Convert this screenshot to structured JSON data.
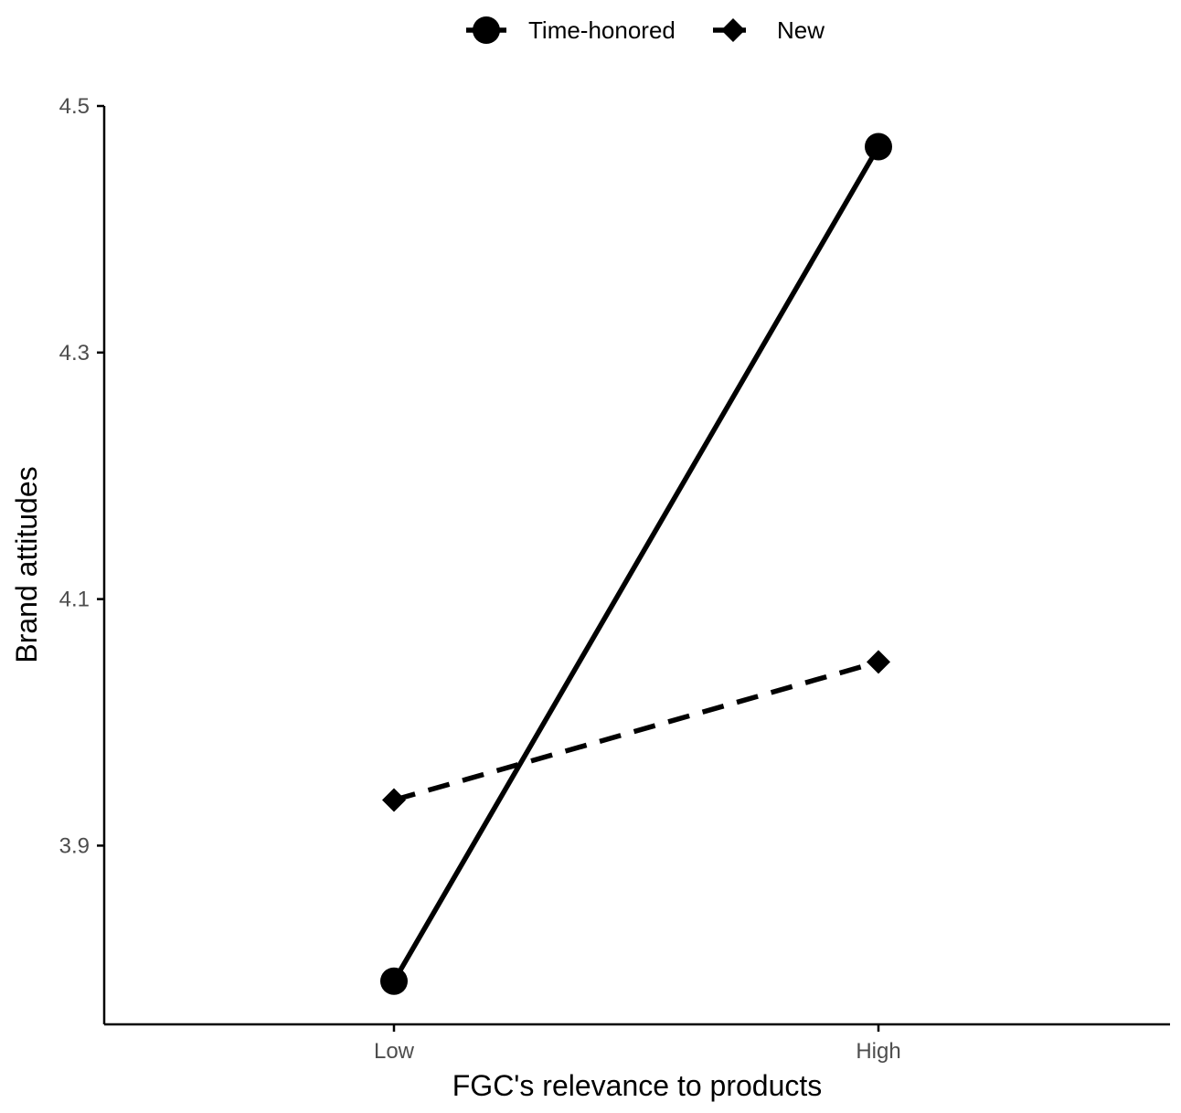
{
  "chart_data": {
    "type": "line",
    "title": "",
    "xlabel": "FGC's relevance to products",
    "ylabel": "Brand attitudes",
    "categories": [
      "Low",
      "High"
    ],
    "yticks": [
      "3.9",
      "4.1",
      "4.3",
      "4.5"
    ],
    "ylim": [
      3.755,
      4.5
    ],
    "legend_position": "top",
    "grid": false,
    "series": [
      {
        "name": "Time-honored",
        "marker": "circle",
        "linestyle": "solid",
        "values": [
          3.79,
          4.467
        ]
      },
      {
        "name": "New",
        "marker": "diamond",
        "linestyle": "dashed",
        "values": [
          3.937,
          4.049
        ]
      }
    ],
    "colors": {
      "line": "#000000",
      "axis": "#000000",
      "tick_label": "#4d4d4d",
      "background": "#ffffff"
    }
  }
}
